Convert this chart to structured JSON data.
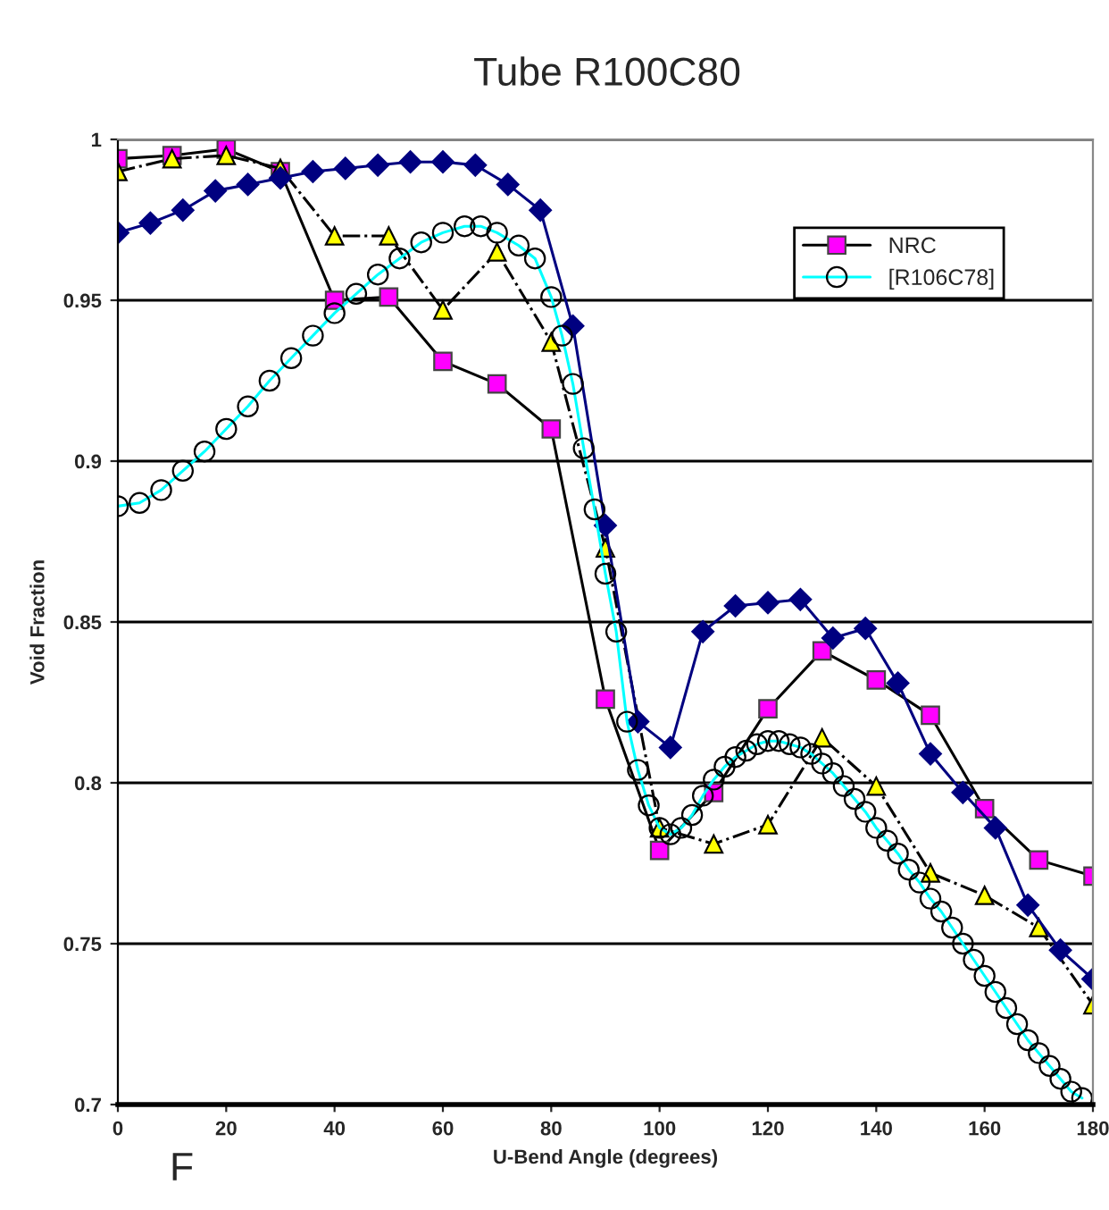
{
  "chart_data": {
    "type": "line",
    "title": "Tube R100C80",
    "xlabel": "U-Bend Angle (degrees)",
    "ylabel": "Void Fraction",
    "annotations": [
      "F"
    ],
    "xlim": [
      0,
      180
    ],
    "xticks": [
      0,
      20,
      40,
      60,
      80,
      100,
      120,
      140,
      160,
      180
    ],
    "ylim": [
      0.7,
      1
    ],
    "yticks": [
      0.7,
      0.75,
      0.8,
      0.85,
      0.9,
      0.95,
      1
    ],
    "grid": "y",
    "legend": "top right",
    "series": [
      {
        "name": "NRC",
        "color": "#ff00ff",
        "marker": "square",
        "line_style": "solid",
        "x": [
          0,
          10,
          20,
          30,
          40,
          50,
          60,
          70,
          80,
          90,
          100,
          110,
          120,
          130,
          140,
          150,
          160,
          170,
          180
        ],
        "values": [
          0.994,
          0.995,
          0.997,
          0.99,
          0.95,
          0.951,
          0.931,
          0.924,
          0.91,
          0.826,
          0.779,
          0.797,
          0.823,
          0.841,
          0.832,
          0.821,
          0.792,
          0.776,
          0.771
        ]
      },
      {
        "color": "#ffff00",
        "marker": "triangle",
        "line_style": "dashed",
        "x": [
          0,
          10,
          20,
          30,
          40,
          50,
          60,
          70,
          80,
          90,
          100,
          110,
          120,
          130,
          140,
          150,
          160,
          170,
          180
        ],
        "values": [
          0.99,
          0.994,
          0.995,
          0.991,
          0.97,
          0.97,
          0.947,
          0.965,
          0.937,
          0.873,
          0.786,
          0.781,
          0.787,
          0.814,
          0.799,
          0.772,
          0.765,
          0.755,
          0.731
        ]
      },
      {
        "color": "#000080",
        "marker": "diamond",
        "line_style": "solid",
        "x": [
          0,
          6,
          12,
          18,
          24,
          30,
          36,
          42,
          48,
          54,
          60,
          66,
          72,
          78,
          84,
          90,
          96,
          102,
          108,
          114,
          120,
          126,
          132,
          138,
          144,
          150,
          156,
          162,
          168,
          174,
          180
        ],
        "values": [
          0.971,
          0.974,
          0.978,
          0.984,
          0.986,
          0.988,
          0.99,
          0.991,
          0.992,
          0.993,
          0.993,
          0.992,
          0.986,
          0.978,
          0.942,
          0.88,
          0.819,
          0.811,
          0.847,
          0.855,
          0.856,
          0.857,
          0.845,
          0.848,
          0.831,
          0.809,
          0.797,
          0.786,
          0.762,
          0.748,
          0.739
        ]
      },
      {
        "name": "[R106C78]",
        "color": "#00ffff",
        "marker": "circle",
        "line_style": "solid",
        "x": [
          0,
          4,
          8,
          12,
          16,
          20,
          24,
          28,
          32,
          36,
          40,
          44,
          48,
          52,
          56,
          60,
          64,
          67,
          70,
          74,
          77,
          80,
          82,
          84,
          86,
          88,
          90,
          92,
          94,
          96,
          98,
          100,
          102,
          104,
          106,
          108,
          110,
          112,
          114,
          116,
          118,
          120,
          122,
          124,
          126,
          128,
          130,
          132,
          134,
          136,
          138,
          140,
          142,
          144,
          146,
          148,
          150,
          152,
          154,
          156,
          158,
          160,
          162,
          164,
          166,
          168,
          170,
          172,
          174,
          176,
          178
        ],
        "values": [
          0.886,
          0.887,
          0.891,
          0.897,
          0.903,
          0.91,
          0.917,
          0.925,
          0.932,
          0.939,
          0.946,
          0.952,
          0.958,
          0.963,
          0.968,
          0.971,
          0.973,
          0.973,
          0.971,
          0.967,
          0.963,
          0.951,
          0.939,
          0.924,
          0.904,
          0.885,
          0.865,
          0.847,
          0.819,
          0.804,
          0.793,
          0.786,
          0.784,
          0.786,
          0.79,
          0.796,
          0.801,
          0.805,
          0.808,
          0.81,
          0.812,
          0.813,
          0.813,
          0.812,
          0.811,
          0.809,
          0.806,
          0.803,
          0.799,
          0.795,
          0.791,
          0.786,
          0.782,
          0.778,
          0.773,
          0.769,
          0.764,
          0.76,
          0.755,
          0.75,
          0.745,
          0.74,
          0.735,
          0.73,
          0.725,
          0.72,
          0.716,
          0.712,
          0.708,
          0.704,
          0.702
        ]
      }
    ]
  }
}
